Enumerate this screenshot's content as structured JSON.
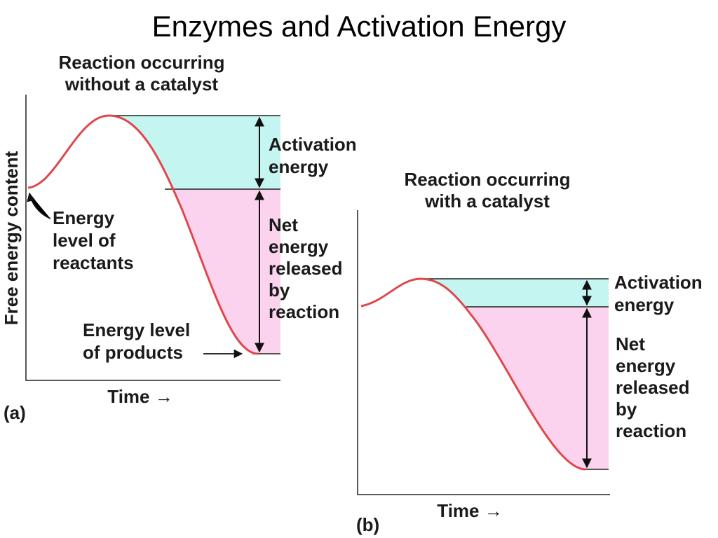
{
  "title": "Enzymes and Activation Energy",
  "panel_a": {
    "heading": [
      "Reaction occurring",
      "without a catalyst"
    ],
    "y_label": "Free energy content",
    "x_label": "Time →",
    "panel_label": "(a)",
    "activation_label": [
      "Activation",
      "energy"
    ],
    "reactants_label": [
      "Energy",
      "level of",
      "reactants"
    ],
    "net_label": [
      "Net",
      "energy",
      "released",
      "by",
      "reaction"
    ],
    "products_label": [
      "Energy level",
      "of products"
    ]
  },
  "panel_b": {
    "heading": [
      "Reaction occurring",
      "with a catalyst"
    ],
    "x_label": "Time →",
    "panel_label": "(b)",
    "activation_label": [
      "Activation",
      "energy"
    ],
    "net_label": [
      "Net",
      "energy",
      "released",
      "by",
      "reaction"
    ]
  }
}
